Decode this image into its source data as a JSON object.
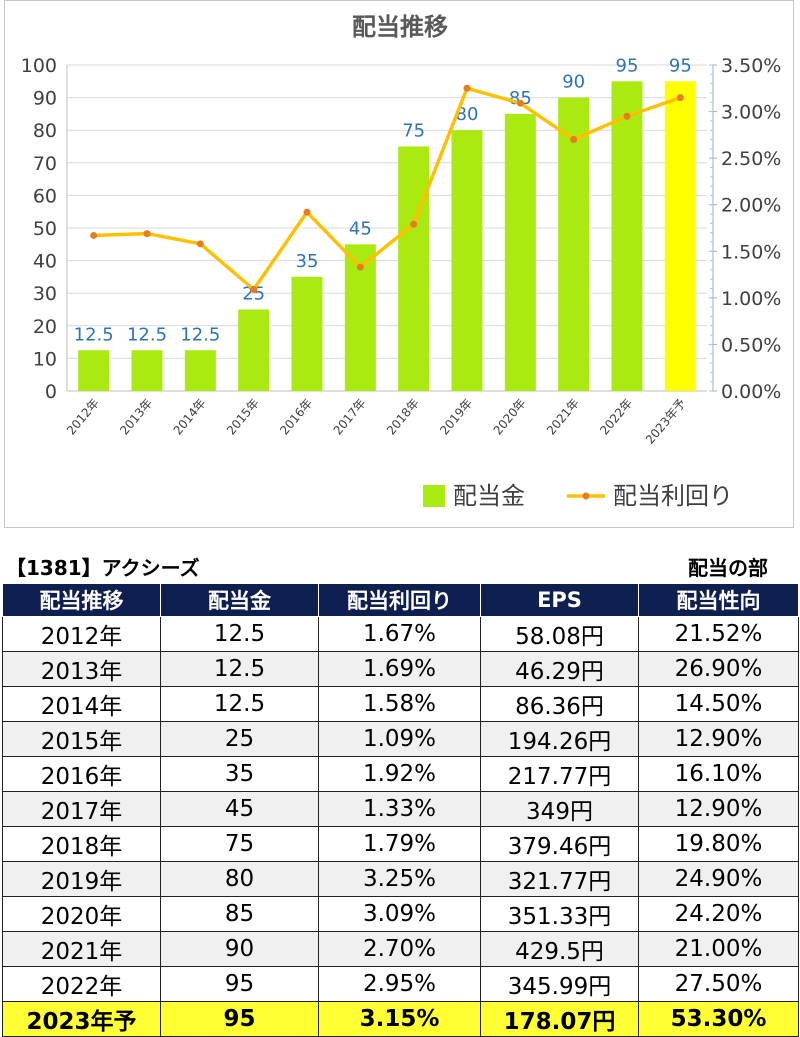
{
  "chart_data": {
    "type": "bar",
    "title": "配当推移",
    "categories": [
      "2012年",
      "2013年",
      "2014年",
      "2015年",
      "2016年",
      "2017年",
      "2018年",
      "2019年",
      "2020年",
      "2021年",
      "2022年",
      "2023年予"
    ],
    "series": [
      {
        "name": "配当金",
        "type": "bar",
        "axis": "left",
        "color": "#aaea10",
        "highlight_color": "#ffff00",
        "highlight_index": 11,
        "values": [
          12.5,
          12.5,
          12.5,
          25,
          35,
          45,
          75,
          80,
          85,
          90,
          95,
          95
        ],
        "labels": [
          "12.5",
          "12.5",
          "12.5",
          "25",
          "35",
          "45",
          "75",
          "80",
          "85",
          "90",
          "95",
          "95"
        ]
      },
      {
        "name": "配当利回り",
        "type": "line",
        "axis": "right",
        "color": "#ffc000",
        "marker_color": "#e57c1f",
        "values": [
          1.67,
          1.69,
          1.58,
          1.09,
          1.92,
          1.33,
          1.79,
          3.25,
          3.09,
          2.7,
          2.95,
          3.15
        ]
      }
    ],
    "y_left": {
      "min": 0,
      "max": 100,
      "ticks": [
        "0",
        "10",
        "20",
        "30",
        "40",
        "50",
        "60",
        "70",
        "80",
        "90",
        "100"
      ]
    },
    "y_right": {
      "min": 0,
      "max": 3.5,
      "ticks": [
        "0.00%",
        "0.50%",
        "1.00%",
        "1.50%",
        "2.00%",
        "2.50%",
        "3.00%",
        "3.50%"
      ]
    },
    "grid": true,
    "legend_position": "bottom-right"
  },
  "table": {
    "company": "【1381】アクシーズ",
    "section": "配当の部",
    "headers": [
      "配当推移",
      "配当金",
      "配当利回り",
      "EPS",
      "配当性向"
    ],
    "rows": [
      [
        "2012年",
        "12.5",
        "1.67%",
        "58.08円",
        "21.52%"
      ],
      [
        "2013年",
        "12.5",
        "1.69%",
        "46.29円",
        "26.90%"
      ],
      [
        "2014年",
        "12.5",
        "1.58%",
        "86.36円",
        "14.50%"
      ],
      [
        "2015年",
        "25",
        "1.09%",
        "194.26円",
        "12.90%"
      ],
      [
        "2016年",
        "35",
        "1.92%",
        "217.77円",
        "16.10%"
      ],
      [
        "2017年",
        "45",
        "1.33%",
        "349円",
        "12.90%"
      ],
      [
        "2018年",
        "75",
        "1.79%",
        "379.46円",
        "19.80%"
      ],
      [
        "2019年",
        "80",
        "3.25%",
        "321.77円",
        "24.90%"
      ],
      [
        "2020年",
        "85",
        "3.09%",
        "351.33円",
        "24.20%"
      ],
      [
        "2021年",
        "90",
        "2.70%",
        "429.5円",
        "21.00%"
      ],
      [
        "2022年",
        "95",
        "2.95%",
        "345.99円",
        "27.50%"
      ],
      [
        "2023年予",
        "95",
        "3.15%",
        "178.07円",
        "53.30%"
      ]
    ]
  }
}
